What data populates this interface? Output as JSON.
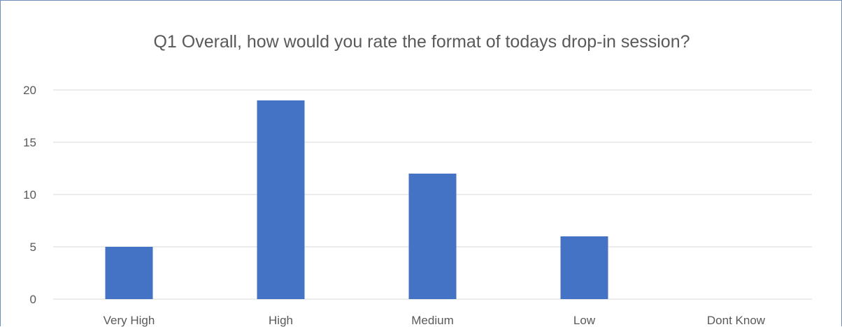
{
  "chart_data": {
    "type": "bar",
    "title": "Q1 Overall, how would you rate the format of todays drop-in session?",
    "categories": [
      "Very High",
      "High",
      "Medium",
      "Low",
      "Dont Know"
    ],
    "values": [
      5,
      19,
      12,
      6,
      0
    ],
    "y_ticks": [
      "0",
      "5",
      "10",
      "15",
      "20"
    ],
    "ylim": [
      0,
      20
    ],
    "xlabel": "",
    "ylabel": "",
    "grid": true,
    "legend": "none",
    "colors": {
      "bar": "#4472C4",
      "grid": "#d9d9d9",
      "text": "#595959",
      "frame": "#6f8fb8"
    }
  }
}
